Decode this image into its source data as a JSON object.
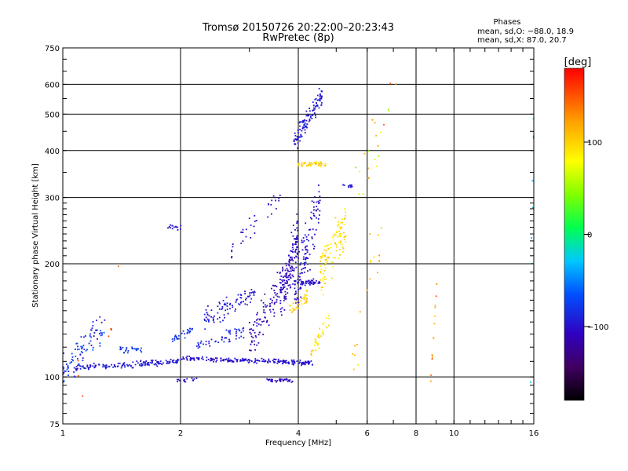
{
  "chart_data": {
    "type": "scatter",
    "title": "Tromsø 20150726 20:22:00–20:23:43",
    "subtitle": "RwPretec (8p)",
    "xlabel": "Frequency [MHz]",
    "ylabel": "Stationary phase Virtual Height [km]",
    "x_scale": "log",
    "y_scale": "log",
    "xlim": [
      1,
      16
    ],
    "ylim": [
      75,
      750
    ],
    "x_ticks": [
      1,
      2,
      4,
      6,
      8,
      10,
      16
    ],
    "x_tick_labels": [
      "1",
      "2",
      "4",
      "6",
      "8",
      "10",
      "16"
    ],
    "y_ticks": [
      75,
      100,
      200,
      300,
      400,
      500,
      600,
      750
    ],
    "y_tick_labels": [
      "75",
      "100",
      "200",
      "300",
      "400",
      "500",
      "600",
      "750"
    ],
    "grid": true,
    "stats": {
      "heading": "Phases",
      "line_o": "mean, sd,O: −88.0, 18.9",
      "line_x": "mean, sd,X:  87.0, 20.7"
    },
    "colorbar": {
      "label": "[deg]",
      "range": [
        -180,
        180
      ],
      "ticks": [
        100,
        0,
        -100
      ],
      "tick_labels": [
        "100",
        "0",
        "−100"
      ],
      "colormap": "rainbow (black→purple→blue→cyan→green→yellow→orange→red)"
    },
    "clusters": [
      {
        "f_start": 1.0,
        "f_end": 1.28,
        "h_start": 102,
        "h_end": 138,
        "n": 90,
        "phase": -85,
        "phase_sd": 20,
        "h_spread": 0.09
      },
      {
        "f_start": 1.08,
        "f_end": 2.0,
        "h_start": 106,
        "h_end": 110,
        "n": 150,
        "phase": -95,
        "phase_sd": 10,
        "h_spread": 0.015
      },
      {
        "f_start": 1.4,
        "f_end": 1.6,
        "h_start": 118,
        "h_end": 118,
        "n": 25,
        "phase": -80,
        "phase_sd": 10,
        "h_spread": 0.02
      },
      {
        "f_start": 1.9,
        "f_end": 2.15,
        "h_start": 125,
        "h_end": 134,
        "n": 30,
        "phase": -80,
        "phase_sd": 10,
        "h_spread": 0.02
      },
      {
        "f_start": 1.95,
        "f_end": 4.35,
        "h_start": 112,
        "h_end": 109,
        "n": 200,
        "phase": -100,
        "phase_sd": 8,
        "h_spread": 0.012
      },
      {
        "f_start": 1.95,
        "f_end": 2.2,
        "h_start": 98,
        "h_end": 98,
        "n": 15,
        "phase": -100,
        "phase_sd": 8,
        "h_spread": 0.012
      },
      {
        "f_start": 3.3,
        "f_end": 3.9,
        "h_start": 98,
        "h_end": 98,
        "n": 40,
        "phase": -105,
        "phase_sd": 8,
        "h_spread": 0.01
      },
      {
        "f_start": 2.2,
        "f_end": 2.9,
        "h_start": 122,
        "h_end": 132,
        "n": 50,
        "phase": -90,
        "phase_sd": 10,
        "h_spread": 0.03
      },
      {
        "f_start": 2.3,
        "f_end": 3.1,
        "h_start": 142,
        "h_end": 168,
        "n": 90,
        "phase": -95,
        "phase_sd": 12,
        "h_spread": 0.06
      },
      {
        "f_start": 3.0,
        "f_end": 3.9,
        "h_start": 125,
        "h_end": 195,
        "n": 130,
        "phase": -110,
        "phase_sd": 10,
        "h_spread": 0.1
      },
      {
        "f_start": 3.6,
        "f_end": 4.0,
        "h_start": 160,
        "h_end": 240,
        "n": 110,
        "phase": -105,
        "phase_sd": 10,
        "h_spread": 0.12
      },
      {
        "f_start": 3.9,
        "f_end": 4.55,
        "h_start": 165,
        "h_end": 300,
        "n": 120,
        "phase": -100,
        "phase_sd": 12,
        "h_spread": 0.14
      },
      {
        "f_start": 3.9,
        "f_end": 4.55,
        "h_start": 178,
        "h_end": 178,
        "n": 50,
        "phase": -100,
        "phase_sd": 8,
        "h_spread": 0.015
      },
      {
        "f_start": 3.9,
        "f_end": 4.6,
        "h_start": 420,
        "h_end": 560,
        "n": 120,
        "phase": -95,
        "phase_sd": 10,
        "h_spread": 0.05
      },
      {
        "f_start": 4.55,
        "f_end": 5.3,
        "h_start": 185,
        "h_end": 255,
        "n": 110,
        "phase": 95,
        "phase_sd": 15,
        "h_spread": 0.12
      },
      {
        "f_start": 3.8,
        "f_end": 4.25,
        "h_start": 150,
        "h_end": 165,
        "n": 35,
        "phase": 100,
        "phase_sd": 15,
        "h_spread": 0.03
      },
      {
        "f_start": 4.0,
        "f_end": 4.7,
        "h_start": 368,
        "h_end": 368,
        "n": 45,
        "phase": 100,
        "phase_sd": 10,
        "h_spread": 0.015
      },
      {
        "f_start": 4.3,
        "f_end": 4.8,
        "h_start": 115,
        "h_end": 145,
        "n": 35,
        "phase": 95,
        "phase_sd": 15,
        "h_spread": 0.05
      },
      {
        "f_start": 2.7,
        "f_end": 3.6,
        "h_start": 220,
        "h_end": 300,
        "n": 35,
        "phase": -100,
        "phase_sd": 10,
        "h_spread": 0.05
      },
      {
        "f_start": 1.85,
        "f_end": 2.05,
        "h_start": 250,
        "h_end": 250,
        "n": 15,
        "phase": -100,
        "phase_sd": 8,
        "h_spread": 0.012
      },
      {
        "f_start": 5.2,
        "f_end": 5.5,
        "h_start": 322,
        "h_end": 322,
        "n": 12,
        "phase": -100,
        "phase_sd": 8,
        "h_spread": 0.012
      },
      {
        "f_start": 8.7,
        "f_end": 9.1,
        "h_start": 92,
        "h_end": 200,
        "n": 14,
        "phase": 130,
        "phase_sd": 25,
        "h_spread": 0.03
      },
      {
        "f_start": 5.6,
        "f_end": 7.2,
        "h_start": 300,
        "h_end": 620,
        "n": 22,
        "phase": 100,
        "phase_sd": 60,
        "h_spread": 0.15
      },
      {
        "f_start": 5.5,
        "f_end": 6.6,
        "h_start": 110,
        "h_end": 250,
        "n": 18,
        "phase": 110,
        "phase_sd": 40,
        "h_spread": 0.2
      },
      {
        "f_start": 15.7,
        "f_end": 16.0,
        "h_start": 120,
        "h_end": 570,
        "n": 8,
        "phase": -40,
        "phase_sd": 20,
        "h_spread": 0.3
      },
      {
        "f_start": 1.0,
        "f_end": 1.4,
        "h_start": 78,
        "h_end": 160,
        "n": 8,
        "phase": 150,
        "phase_sd": 15,
        "h_spread": 0.2
      }
    ]
  }
}
